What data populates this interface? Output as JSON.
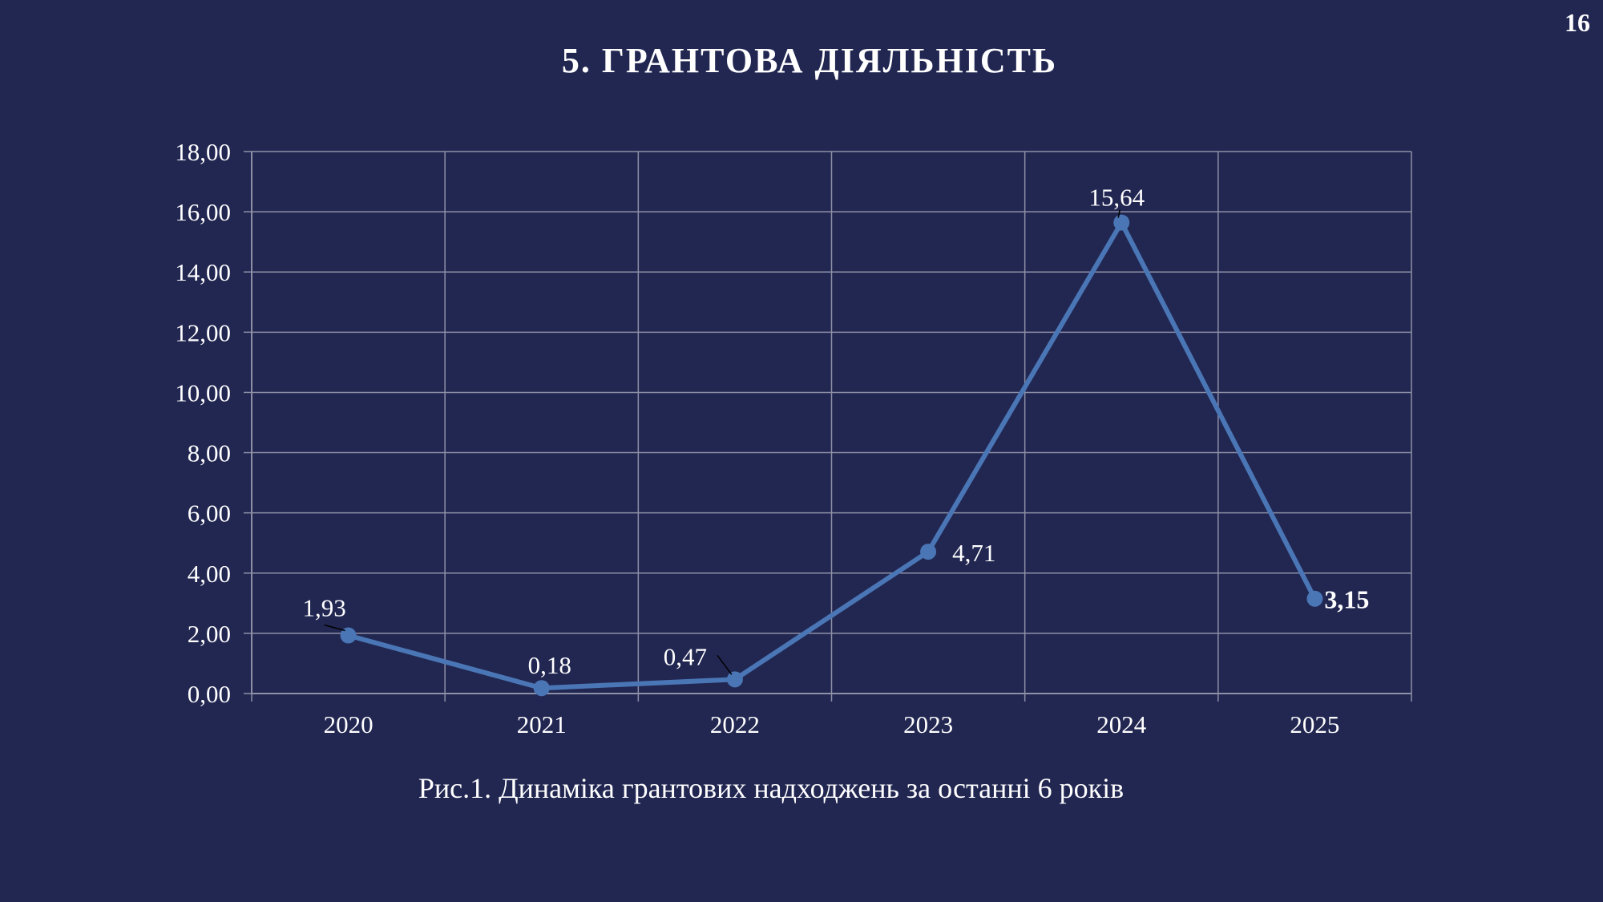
{
  "slide": {
    "page_number": "16",
    "title": "5. ГРАНТОВА ДІЯЛЬНІСТЬ",
    "caption": "Рис.1. Динаміка грантових надходжень за останні 6 років"
  },
  "colors": {
    "background": "#222752",
    "line": "#4A76B6",
    "grid": "#8E90A6",
    "text": "#FFFFFF"
  },
  "chart_data": {
    "type": "line",
    "title": "",
    "xlabel": "",
    "ylabel": "",
    "categories": [
      "2020",
      "2021",
      "2022",
      "2023",
      "2024",
      "2025"
    ],
    "series": [
      {
        "values": [
          1.93,
          0.18,
          0.47,
          4.71,
          15.64,
          3.15
        ],
        "labels": [
          "1,93",
          "0,18",
          "0,47",
          "4,71",
          "15,64",
          "3,15"
        ]
      }
    ],
    "ylim": [
      0,
      18
    ],
    "yticks": [
      0,
      2,
      4,
      6,
      8,
      10,
      12,
      14,
      16,
      18
    ],
    "ytick_labels": [
      "0,00",
      "2,00",
      "4,00",
      "6,00",
      "8,00",
      "10,00",
      "12,00",
      "14,00",
      "16,00",
      "18,00"
    ],
    "grid": true,
    "legend": "none",
    "markers": true,
    "bold_labels": [
      "3,15"
    ]
  }
}
